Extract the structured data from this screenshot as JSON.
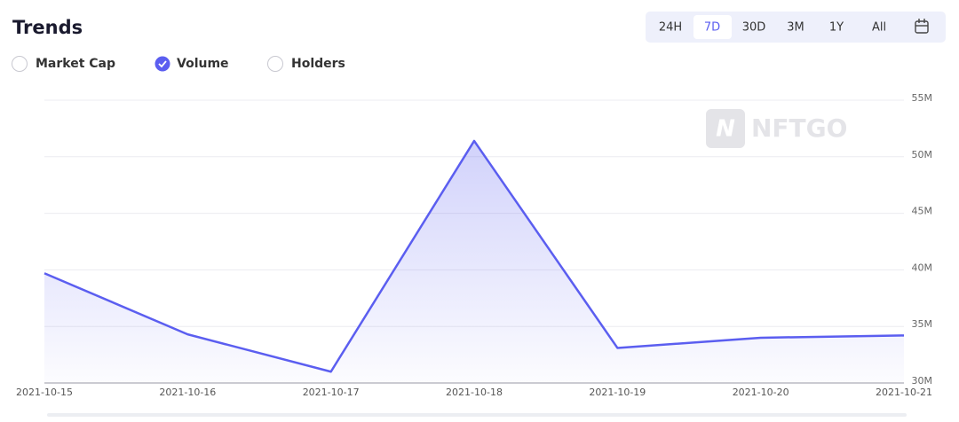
{
  "header": {
    "title": "Trends"
  },
  "options": [
    "Market Cap",
    "Volume",
    "Holders"
  ],
  "ranges": [
    "24H",
    "7D",
    "30D",
    "3M",
    "1Y",
    "All"
  ],
  "watermark": "NFTGO",
  "chart_data": {
    "type": "line",
    "categories": [
      "2021-10-15",
      "2021-10-16",
      "2021-10-17",
      "2021-10-18",
      "2021-10-19",
      "2021-10-20",
      "2021-10-21"
    ],
    "series": [
      {
        "name": "Volume",
        "color": "#5b5ef0",
        "values": [
          39700000,
          34300000,
          31000000,
          51400000,
          33100000,
          34000000,
          34200000
        ]
      }
    ],
    "ylim": [
      30000000,
      55000000
    ],
    "yticks": [
      {
        "value": 30000000,
        "label": "30M"
      },
      {
        "value": 35000000,
        "label": "35M"
      },
      {
        "value": 40000000,
        "label": "40M"
      },
      {
        "value": 45000000,
        "label": "45M"
      },
      {
        "value": 50000000,
        "label": "50M"
      },
      {
        "value": 55000000,
        "label": "55M"
      }
    ],
    "grid": true
  }
}
